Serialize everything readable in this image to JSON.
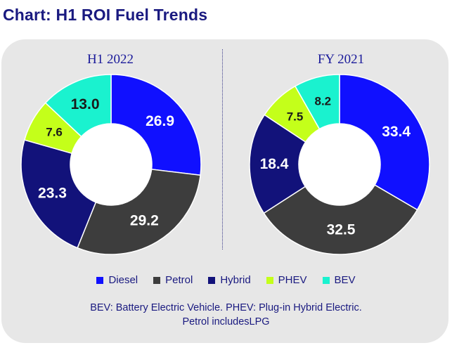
{
  "title": "Chart: H1 ROI Fuel Trends",
  "legend": [
    {
      "name": "Diesel",
      "color": "#1010ff"
    },
    {
      "name": "Petrol",
      "color": "#3d3d3d"
    },
    {
      "name": "Hybrid",
      "color": "#12127a"
    },
    {
      "name": "PHEV",
      "color": "#c4ff1a"
    },
    {
      "name": "BEV",
      "color": "#1af2cf"
    }
  ],
  "footnote_line1": "BEV: Battery Electric Vehicle. PHEV: Plug-in Hybrid Electric.",
  "footnote_line2": "Petrol includesLPG",
  "chart_data": [
    {
      "type": "pie",
      "title": "H1 2022",
      "categories": [
        "Diesel",
        "Petrol",
        "Hybrid",
        "PHEV",
        "BEV"
      ],
      "values": [
        26.9,
        29.2,
        23.3,
        7.6,
        13.0
      ],
      "labels": [
        "26.9",
        "29.2",
        "23.3",
        "7.6",
        "13.0"
      ],
      "colors": [
        "#1010ff",
        "#3d3d3d",
        "#12127a",
        "#c4ff1a",
        "#1af2cf"
      ],
      "label_colors": [
        "#ffffff",
        "#ffffff",
        "#ffffff",
        "#1a1a1a",
        "#1a1a1a"
      ],
      "donut": true
    },
    {
      "type": "pie",
      "title": "FY 2021",
      "categories": [
        "Diesel",
        "Petrol",
        "Hybrid",
        "PHEV",
        "BEV"
      ],
      "values": [
        33.4,
        32.5,
        18.4,
        7.5,
        8.2
      ],
      "labels": [
        "33.4",
        "32.5",
        "18.4",
        "7.5",
        "8.2"
      ],
      "colors": [
        "#1010ff",
        "#3d3d3d",
        "#12127a",
        "#c4ff1a",
        "#1af2cf"
      ],
      "label_colors": [
        "#ffffff",
        "#ffffff",
        "#ffffff",
        "#1a1a1a",
        "#1a1a1a"
      ],
      "donut": true
    }
  ]
}
